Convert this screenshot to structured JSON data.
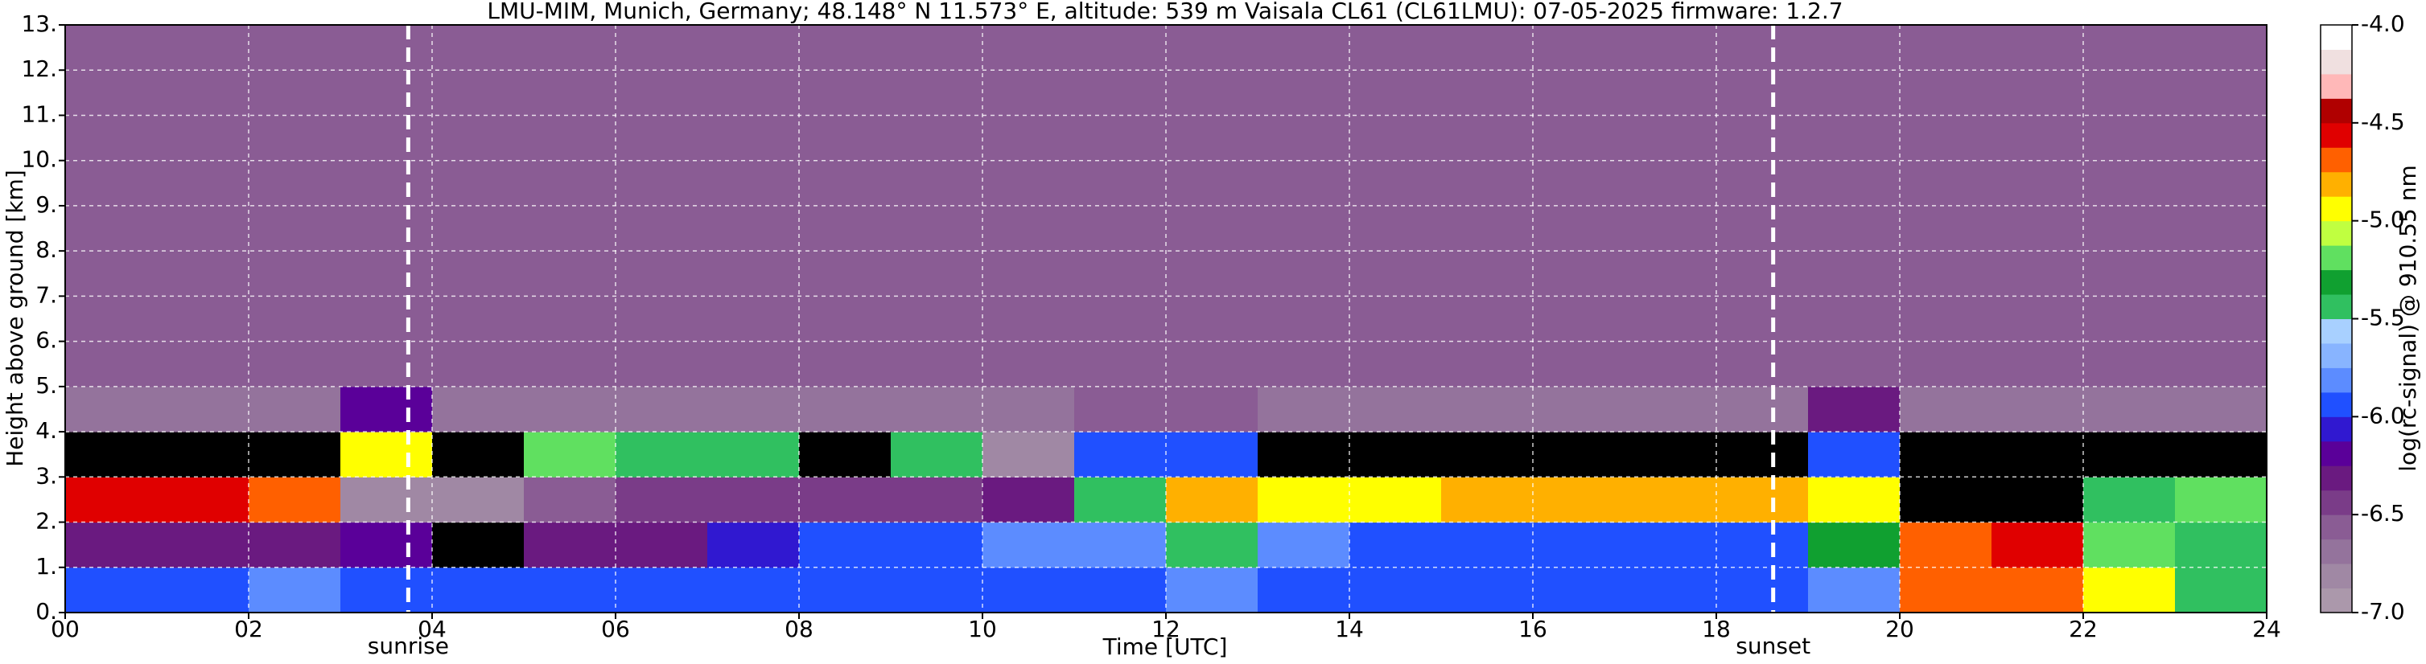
{
  "chart_data": {
    "type": "heatmap",
    "title": "LMU-MIM, Munich, Germany; 48.148° N 11.573° E, altitude: 539 m    Vaisala CL61 (CL61LMU): 07-05-2025    firmware: 1.2.7",
    "x_label": "Time [UTC]",
    "y_label": "Height above ground [km]",
    "xlim": [
      0,
      24
    ],
    "ylim": [
      0,
      13
    ],
    "xticks": [
      {
        "value": 0,
        "label": "00"
      },
      {
        "value": 2,
        "label": "02"
      },
      {
        "value": 4,
        "label": "04"
      },
      {
        "value": 6,
        "label": "06"
      },
      {
        "value": 8,
        "label": "08"
      },
      10,
      12,
      14,
      16,
      18,
      20,
      22,
      24
    ],
    "yticks": [
      {
        "value": 0,
        "label": "0."
      },
      {
        "value": 1,
        "label": "1."
      },
      {
        "value": 2,
        "label": "2."
      },
      {
        "value": 3,
        "label": "3."
      },
      {
        "value": 4,
        "label": "4."
      },
      {
        "value": 5,
        "label": "5."
      },
      {
        "value": 6,
        "label": "6."
      },
      {
        "value": 7,
        "label": "7."
      },
      {
        "value": 8,
        "label": "8."
      },
      {
        "value": 9,
        "label": "9."
      },
      {
        "value": 10,
        "label": "10."
      },
      {
        "value": 11,
        "label": "11."
      },
      {
        "value": 12,
        "label": "12."
      },
      {
        "value": 13,
        "label": "13."
      }
    ],
    "grid": true,
    "x_bins": [
      0,
      1,
      2,
      3,
      4,
      5,
      6,
      7,
      8,
      9,
      10,
      11,
      12,
      13,
      14,
      15,
      16,
      17,
      18,
      19,
      20,
      21,
      22,
      23,
      24
    ],
    "y_bins": [
      0,
      1,
      2,
      3,
      4,
      5,
      6,
      7,
      8,
      9,
      10,
      11,
      12,
      13
    ],
    "z": [
      [
        -5.9,
        -5.9,
        -5.8,
        -5.9,
        -6.0,
        -6.0,
        -6.0,
        -5.9,
        -5.9,
        -5.9,
        -5.9,
        -5.9,
        -5.8,
        -5.9,
        -5.9,
        -5.9,
        -5.9,
        -5.9,
        -5.9,
        -5.8,
        -4.7,
        -4.7,
        -5.0,
        -5.5
      ],
      [
        -6.3,
        -6.3,
        -6.3,
        -6.2,
        -7.5,
        -6.3,
        -6.3,
        -6.1,
        -6.0,
        -5.9,
        -5.8,
        -5.8,
        -5.5,
        -5.8,
        -5.9,
        -5.9,
        -5.9,
        -5.9,
        -5.9,
        -5.3,
        -4.7,
        -4.6,
        -5.2,
        -5.4
      ],
      [
        -4.6,
        -4.6,
        -4.7,
        -6.8,
        -6.8,
        -6.6,
        -6.5,
        -6.5,
        -6.5,
        -6.5,
        -6.3,
        -5.4,
        -4.8,
        -4.9,
        -4.9,
        -4.8,
        -4.8,
        -4.8,
        -4.8,
        -5.0,
        -7.5,
        -7.5,
        -5.4,
        -5.2
      ],
      [
        -7.5,
        -7.5,
        -7.5,
        -5.0,
        -7.5,
        -5.2,
        -5.4,
        -5.5,
        -7.2,
        -5.4,
        -6.8,
        -6.0,
        -6.0,
        -7.5,
        -7.5,
        -7.5,
        -7.5,
        -7.5,
        -7.5,
        -6.0,
        -7.5,
        -7.5,
        -7.5,
        -7.5
      ],
      [
        -6.7,
        -6.7,
        -6.7,
        -6.2,
        -6.7,
        -6.7,
        -6.7,
        -6.7,
        -6.7,
        -6.7,
        -6.7,
        -6.6,
        -6.6,
        -6.7,
        -6.7,
        -6.7,
        -6.7,
        -6.7,
        -6.7,
        -6.3,
        -6.7,
        -6.7,
        -6.7,
        -6.7
      ],
      [
        -6.6,
        -6.6,
        -6.6,
        -6.6,
        -6.6,
        -6.6,
        -6.6,
        -6.6,
        -6.6,
        -6.6,
        -6.6,
        -6.6,
        -6.6,
        -6.6,
        -6.6,
        -6.6,
        -6.6,
        -6.6,
        -6.6,
        -6.6,
        -6.6,
        -6.6,
        -6.6,
        -6.6
      ],
      [
        -6.6,
        -6.6,
        -6.6,
        -6.6,
        -6.6,
        -6.6,
        -6.6,
        -6.6,
        -6.6,
        -6.6,
        -6.6,
        -6.6,
        -6.6,
        -6.6,
        -6.6,
        -6.6,
        -6.6,
        -6.6,
        -6.6,
        -6.6,
        -6.6,
        -6.6,
        -6.6,
        -6.6
      ],
      [
        -6.6,
        -6.6,
        -6.6,
        -6.6,
        -6.6,
        -6.6,
        -6.6,
        -6.6,
        -6.6,
        -6.6,
        -6.6,
        -6.6,
        -6.6,
        -6.6,
        -6.6,
        -6.6,
        -6.6,
        -6.6,
        -6.6,
        -6.6,
        -6.6,
        -6.6,
        -6.6,
        -6.6
      ],
      [
        -6.6,
        -6.6,
        -6.6,
        -6.6,
        -6.6,
        -6.6,
        -6.6,
        -6.6,
        -6.6,
        -6.6,
        -6.6,
        -6.6,
        -6.6,
        -6.6,
        -6.6,
        -6.6,
        -6.6,
        -6.6,
        -6.6,
        -6.6,
        -6.6,
        -6.6,
        -6.6,
        -6.6
      ],
      [
        -6.6,
        -6.6,
        -6.6,
        -6.6,
        -6.6,
        -6.6,
        -6.6,
        -6.6,
        -6.6,
        -6.6,
        -6.6,
        -6.6,
        -6.6,
        -6.6,
        -6.6,
        -6.6,
        -6.6,
        -6.6,
        -6.6,
        -6.6,
        -6.6,
        -6.6,
        -6.6,
        -6.6
      ],
      [
        -6.6,
        -6.6,
        -6.6,
        -6.6,
        -6.6,
        -6.6,
        -6.6,
        -6.6,
        -6.6,
        -6.6,
        -6.6,
        -6.6,
        -6.6,
        -6.6,
        -6.6,
        -6.6,
        -6.6,
        -6.6,
        -6.6,
        -6.6,
        -6.6,
        -6.6,
        -6.6,
        -6.6
      ],
      [
        -6.6,
        -6.6,
        -6.6,
        -6.6,
        -6.6,
        -6.6,
        -6.6,
        -6.6,
        -6.6,
        -6.6,
        -6.6,
        -6.6,
        -6.6,
        -6.6,
        -6.6,
        -6.6,
        -6.6,
        -6.6,
        -6.6,
        -6.6,
        -6.6,
        -6.6,
        -6.6,
        -6.6
      ],
      [
        -6.6,
        -6.6,
        -6.6,
        -6.6,
        -6.6,
        -6.6,
        -6.6,
        -6.6,
        -6.6,
        -6.6,
        -6.6,
        -6.6,
        -6.6,
        -6.6,
        -6.6,
        -6.6,
        -6.6,
        -6.6,
        -6.6,
        -6.6,
        -6.6,
        -6.6,
        -6.6,
        -6.6
      ]
    ],
    "events": [
      {
        "label": "sunrise",
        "x": 3.74
      },
      {
        "label": "sunset",
        "x": 18.62
      }
    ],
    "colorbar": {
      "label": "log(rc-signal) @ 910.55 nm",
      "lim": [
        -7,
        -4
      ],
      "ticks": [
        {
          "value": -7,
          "label": "-7.0"
        },
        -6.5,
        {
          "value": -6,
          "label": "-6.0"
        },
        -5.5,
        {
          "value": -5,
          "label": "-5.0"
        },
        -4.5,
        {
          "value": -4,
          "label": "-4.0"
        }
      ],
      "colors": [
        "#ab98ab",
        "#a088a4",
        "#94739c",
        "#8a5c94",
        "#7a3c88",
        "#6a1a80",
        "#5a0099",
        "#3018d0",
        "#2050ff",
        "#5c8cff",
        "#88b4ff",
        "#a8d0ff",
        "#30c060",
        "#10a030",
        "#60e060",
        "#c0ff40",
        "#ffff00",
        "#ffb000",
        "#ff6000",
        "#e00000",
        "#b00000",
        "#ffb8b8",
        "#f0e0e0",
        "#ffffff"
      ],
      "under_color": "#000000"
    }
  }
}
